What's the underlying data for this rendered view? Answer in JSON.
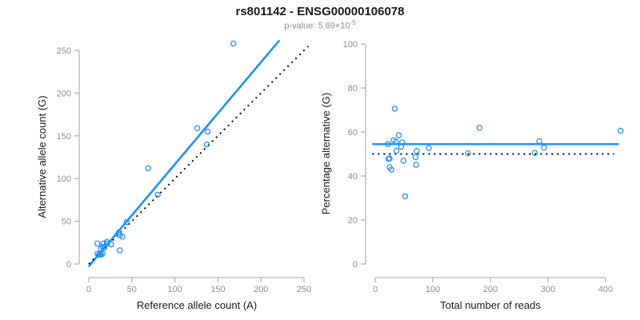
{
  "title": "rs801142 - ENSG00000106078",
  "subtitle": {
    "prefix": "p-value: 5.69×10",
    "exponent": "-5"
  },
  "colors": {
    "accent_blue": "#1E90FF",
    "identity_black": "#000000",
    "axis_gray": "#B3B3B3",
    "tick_text_gray": "#8C8C8C"
  },
  "chart_data": [
    {
      "type": "scatter",
      "name": "allele-counts-scatter",
      "xlabel": "Reference allele count (A)",
      "ylabel": "Alternative allele count (G)",
      "xlim": [
        0,
        250
      ],
      "ylim": [
        0,
        250
      ],
      "x_ticks": [
        0,
        50,
        100,
        150,
        200,
        250
      ],
      "y_ticks": [
        0,
        50,
        100,
        150,
        200,
        250
      ],
      "grid": false,
      "legend": null,
      "marker": "open-circle",
      "points": [
        [
          10,
          24
        ],
        [
          17,
          24
        ],
        [
          21,
          26
        ],
        [
          14,
          18
        ],
        [
          16,
          20
        ],
        [
          21,
          24
        ],
        [
          10,
          12
        ],
        [
          18,
          19
        ],
        [
          35,
          37
        ],
        [
          44,
          49
        ],
        [
          80,
          81
        ],
        [
          12,
          11
        ],
        [
          13,
          12
        ],
        [
          26,
          23
        ],
        [
          39,
          32
        ],
        [
          36,
          34
        ],
        [
          14,
          11
        ],
        [
          16,
          12
        ],
        [
          36,
          16
        ],
        [
          69,
          112
        ],
        [
          126,
          159
        ],
        [
          138,
          155
        ],
        [
          137,
          140
        ],
        [
          168,
          258
        ]
      ],
      "lines": [
        {
          "name": "regression-line",
          "style": "solid",
          "color_key": "accent_blue",
          "slope": 1.195,
          "intercept": -2.8,
          "x_range": [
            0,
            221.5
          ]
        },
        {
          "name": "identity-line",
          "style": "dotted",
          "color_key": "identity_black",
          "slope": 1,
          "intercept": 0,
          "x_range": [
            0,
            255
          ]
        }
      ]
    },
    {
      "type": "scatter",
      "name": "percentage-vs-reads-scatter",
      "xlabel": "Total number of reads",
      "ylabel": "Percentage alternative (G)",
      "xlim": [
        0,
        400
      ],
      "ylim": [
        0,
        100
      ],
      "x_ticks": [
        0,
        100,
        200,
        300,
        400
      ],
      "y_ticks": [
        0,
        20,
        40,
        60,
        80,
        100
      ],
      "grid": false,
      "legend": null,
      "marker": "open-circle",
      "points": [
        [
          34,
          70.6
        ],
        [
          41,
          58.5
        ],
        [
          47,
          55.3
        ],
        [
          32,
          56.3
        ],
        [
          36,
          55.6
        ],
        [
          45,
          53.3
        ],
        [
          22,
          54.5
        ],
        [
          37,
          51.4
        ],
        [
          72,
          51.4
        ],
        [
          93,
          52.7
        ],
        [
          161,
          50.3
        ],
        [
          23,
          47.8
        ],
        [
          25,
          48.0
        ],
        [
          49,
          46.9
        ],
        [
          71,
          45.1
        ],
        [
          70,
          48.6
        ],
        [
          25,
          44.0
        ],
        [
          28,
          42.9
        ],
        [
          52,
          30.8
        ],
        [
          181,
          61.9
        ],
        [
          285,
          55.8
        ],
        [
          293,
          52.9
        ],
        [
          277,
          50.5
        ],
        [
          426,
          60.6
        ]
      ],
      "lines": [
        {
          "name": "mean-percentage-line",
          "style": "solid",
          "color_key": "accent_blue",
          "hline": 54.5,
          "x_range": [
            -5,
            423
          ]
        },
        {
          "name": "fifty-percent-line",
          "style": "dotted",
          "color_key": "identity_black",
          "hline": 50,
          "x_range": [
            -5,
            415
          ]
        }
      ]
    }
  ]
}
